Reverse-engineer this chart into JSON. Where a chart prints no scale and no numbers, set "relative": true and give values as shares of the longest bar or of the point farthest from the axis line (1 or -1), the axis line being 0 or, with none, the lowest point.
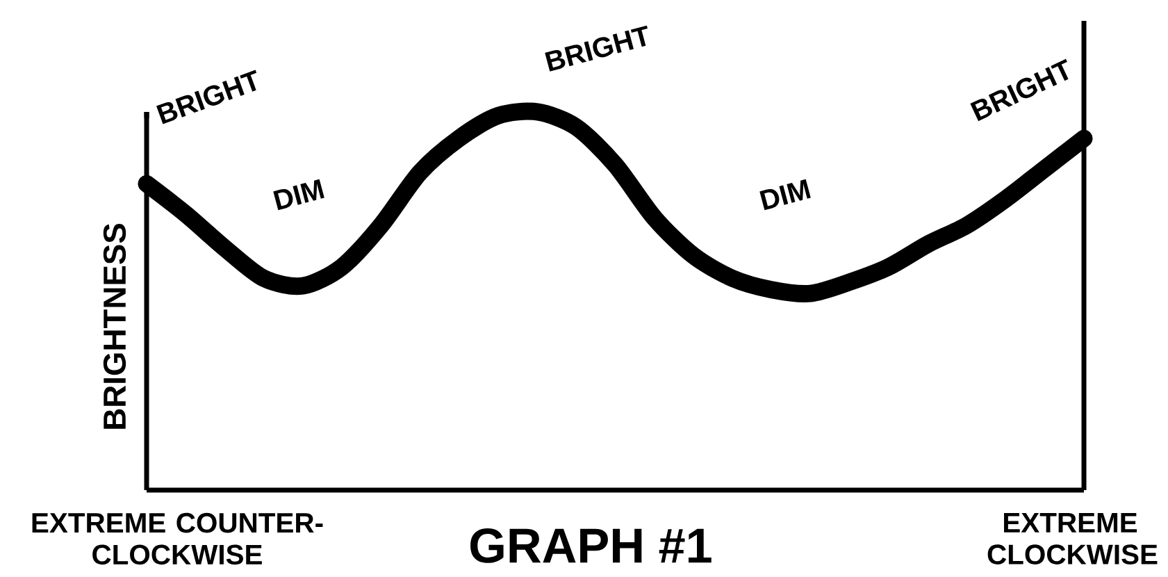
{
  "chart_data": {
    "type": "line",
    "relative": true,
    "title": "GRAPH #1",
    "ylabel": "BRIGHTNESS",
    "categories": [
      null,
      null,
      null,
      null,
      null,
      null,
      null,
      null,
      null,
      null,
      null,
      null,
      null,
      null,
      null,
      null,
      null,
      null,
      null,
      null,
      null,
      null,
      null,
      null,
      null
    ],
    "series": [
      {
        "color": "#000000",
        "values": [
          0.81,
          0.73,
          0.64,
          0.56,
          0.54,
          0.59,
          0.7,
          0.84,
          0.93,
          0.99,
          1,
          0.96,
          0.86,
          0.72,
          0.62,
          0.56,
          0.53,
          0.52,
          0.55,
          0.59,
          0.65,
          0.7,
          0.77,
          0.85,
          0.93
        ]
      }
    ],
    "annotations": [
      "BRIGHT",
      "DIM",
      "BRIGHT",
      "DIM",
      "BRIGHT",
      "EXTREME COUNTER-CLOCKWISE",
      "EXTREME CLOCKWISE"
    ],
    "marker": "none",
    "line_style": "solid"
  }
}
